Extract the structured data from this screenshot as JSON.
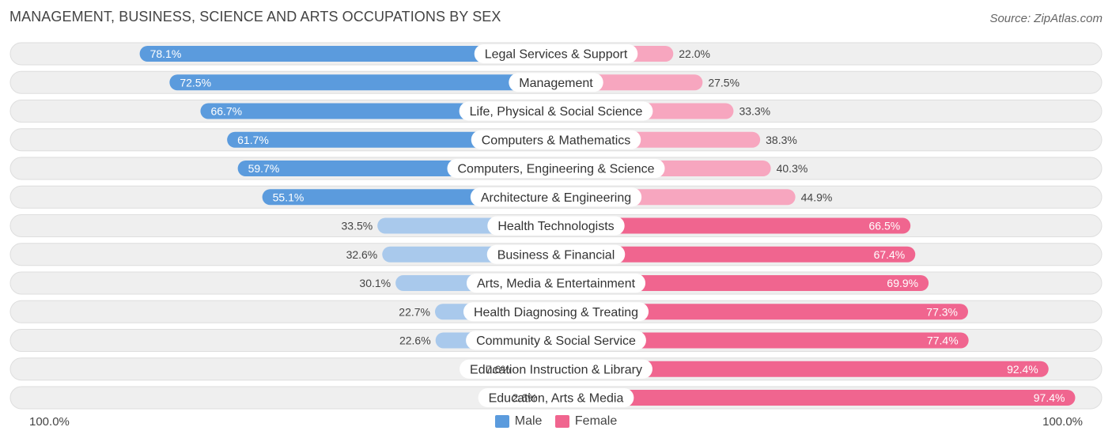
{
  "header": {
    "title": "MANAGEMENT, BUSINESS, SCIENCE AND ARTS OCCUPATIONS BY SEX",
    "source": "Source: ZipAtlas.com"
  },
  "colors": {
    "male_dark": "#5b9bdd",
    "male_light": "#a9c9ec",
    "female_dark": "#f0658f",
    "female_light": "#f7a6bf",
    "track": "#efefef",
    "track_border": "#dedede"
  },
  "chart_data": {
    "type": "bar",
    "orientation": "horizontal-diverging",
    "title": "MANAGEMENT, BUSINESS, SCIENCE AND ARTS OCCUPATIONS BY SEX",
    "xlim": [
      0,
      100
    ],
    "axis_left_label": "100.0%",
    "axis_right_label": "100.0%",
    "legend": [
      "Male",
      "Female"
    ],
    "legend_position": "bottom-center",
    "categories": [
      "Legal Services & Support",
      "Management",
      "Life, Physical & Social Science",
      "Computers & Mathematics",
      "Computers, Engineering & Science",
      "Architecture & Engineering",
      "Health Technologists",
      "Business & Financial",
      "Arts, Media & Entertainment",
      "Health Diagnosing & Treating",
      "Community & Social Service",
      "Education Instruction & Library",
      "Education, Arts & Media"
    ],
    "series": [
      {
        "name": "Male",
        "values": [
          78.1,
          72.5,
          66.7,
          61.7,
          59.7,
          55.1,
          33.5,
          32.6,
          30.1,
          22.7,
          22.6,
          7.6,
          2.6
        ],
        "labels": [
          "78.1%",
          "72.5%",
          "66.7%",
          "61.7%",
          "59.7%",
          "55.1%",
          "33.5%",
          "32.6%",
          "30.1%",
          "22.7%",
          "22.6%",
          "7.6%",
          "2.6%"
        ]
      },
      {
        "name": "Female",
        "values": [
          22.0,
          27.5,
          33.3,
          38.3,
          40.3,
          44.9,
          66.5,
          67.4,
          69.9,
          77.3,
          77.4,
          92.4,
          97.4
        ],
        "labels": [
          "22.0%",
          "27.5%",
          "33.3%",
          "38.3%",
          "40.3%",
          "44.9%",
          "66.5%",
          "67.4%",
          "69.9%",
          "77.3%",
          "77.4%",
          "92.4%",
          "97.4%"
        ]
      }
    ]
  }
}
